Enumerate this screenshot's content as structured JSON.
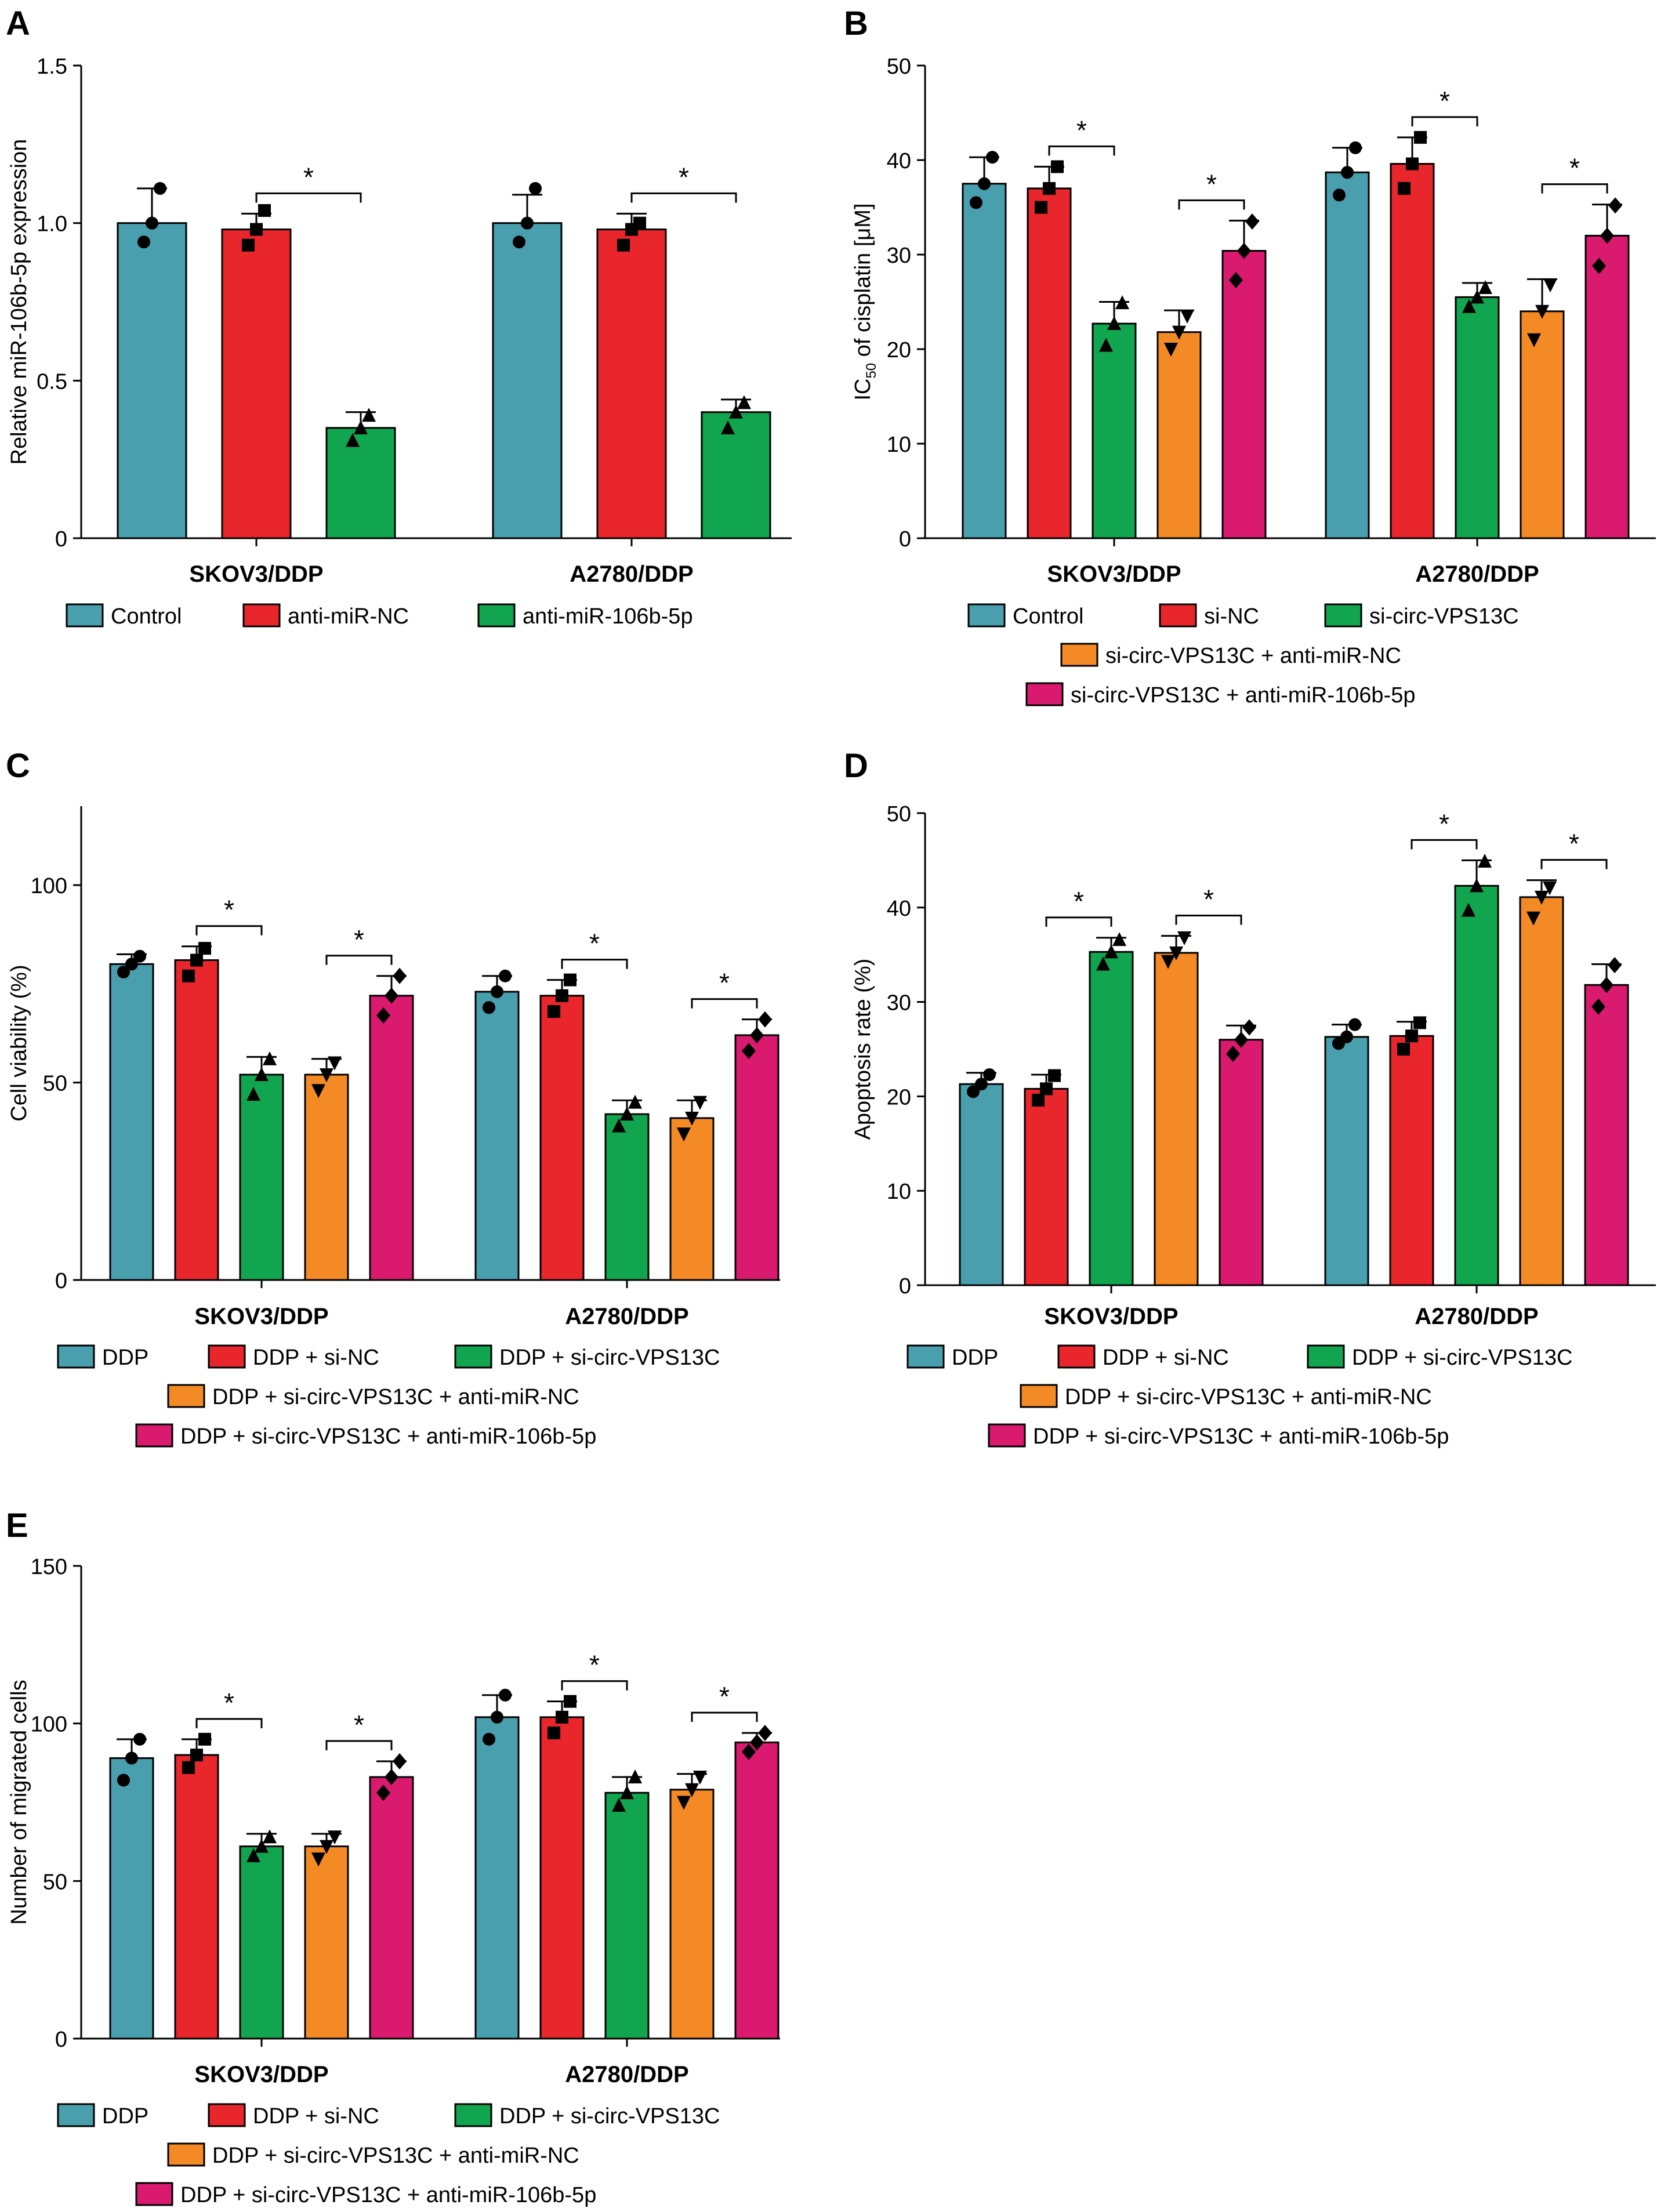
{
  "colors": {
    "teal": "#4a9fae",
    "red": "#e8262c",
    "green": "#12a54f",
    "orange": "#f48a25",
    "magenta": "#d91a6f",
    "axis": "#000000"
  },
  "chart_data": [
    {
      "type": "bar",
      "panel_label": "A",
      "ylabel": "Relative miR-106b-5p expression",
      "ylim": [
        0,
        1.5
      ],
      "yticks": [
        0,
        0.5,
        1.0,
        1.5
      ],
      "ytick_labels": [
        "0",
        "0.5",
        "1.0",
        "1.5"
      ],
      "groups": [
        "SKOV3/DDP",
        "A2780/DDP"
      ],
      "series": [
        {
          "name": "Control",
          "color": "teal",
          "marker": "circle",
          "values": [
            1.0,
            1.0
          ],
          "sd": [
            0.11,
            0.09
          ],
          "points": [
            [
              0.94,
              1.0,
              1.11
            ],
            [
              0.94,
              1.0,
              1.11
            ]
          ]
        },
        {
          "name": "anti-miR-NC",
          "color": "red",
          "marker": "square",
          "values": [
            0.98,
            0.98
          ],
          "sd": [
            0.05,
            0.05
          ],
          "points": [
            [
              0.93,
              0.98,
              1.04
            ],
            [
              0.93,
              0.98,
              1.0
            ]
          ]
        },
        {
          "name": "anti-miR-106b-5p",
          "color": "green",
          "marker": "triangle-up",
          "values": [
            0.35,
            0.4
          ],
          "sd": [
            0.05,
            0.04
          ],
          "points": [
            [
              0.31,
              0.35,
              0.39
            ],
            [
              0.35,
              0.4,
              0.43
            ]
          ]
        }
      ],
      "significance": [
        {
          "group": 0,
          "from": 1,
          "to": 2,
          "label": "*"
        },
        {
          "group": 1,
          "from": 1,
          "to": 2,
          "label": "*"
        }
      ],
      "legend_rows": [
        [
          0,
          1,
          2
        ]
      ]
    },
    {
      "type": "bar",
      "panel_label": "B",
      "ylabel_main": "IC",
      "ylabel_sub": "50",
      "ylabel_rest": " of cisplatin [μM]",
      "ylim": [
        0,
        50
      ],
      "yticks": [
        0,
        10,
        20,
        30,
        40,
        50
      ],
      "ytick_labels": [
        "0",
        "10",
        "20",
        "30",
        "40",
        "50"
      ],
      "groups": [
        "SKOV3/DDP",
        "A2780/DDP"
      ],
      "series": [
        {
          "name": "Control",
          "color": "teal",
          "marker": "circle",
          "values": [
            37.5,
            38.7
          ],
          "sd": [
            2.8,
            2.6
          ],
          "points": [
            [
              35.5,
              37.5,
              40.3
            ],
            [
              36.3,
              38.7,
              41.3
            ]
          ]
        },
        {
          "name": "si-NC",
          "color": "red",
          "marker": "square",
          "values": [
            37.0,
            39.6
          ],
          "sd": [
            2.3,
            2.8
          ],
          "points": [
            [
              35.0,
              37.0,
              39.3
            ],
            [
              37.0,
              39.6,
              42.4
            ]
          ]
        },
        {
          "name": "si-circ-VPS13C",
          "color": "green",
          "marker": "triangle-up",
          "values": [
            22.7,
            25.5
          ],
          "sd": [
            2.3,
            1.5
          ],
          "points": [
            [
              20.4,
              22.7,
              24.9
            ],
            [
              24.5,
              25.5,
              26.5
            ]
          ]
        },
        {
          "name": "si-circ-VPS13C + anti-miR-NC",
          "color": "orange",
          "marker": "triangle-down",
          "values": [
            21.8,
            24.0
          ],
          "sd": [
            2.3,
            3.4
          ],
          "points": [
            [
              20.0,
              21.8,
              23.5
            ],
            [
              21.0,
              24.0,
              26.8
            ]
          ]
        },
        {
          "name": "si-circ-VPS13C + anti-miR-106b-5p",
          "color": "magenta",
          "marker": "diamond",
          "values": [
            30.4,
            32.0
          ],
          "sd": [
            3.2,
            3.3
          ],
          "points": [
            [
              27.3,
              30.4,
              33.5
            ],
            [
              28.8,
              32.0,
              35.2
            ]
          ]
        }
      ],
      "significance": [
        {
          "group": 0,
          "from": 1,
          "to": 2,
          "label": "*"
        },
        {
          "group": 0,
          "from": 3,
          "to": 4,
          "label": "*"
        },
        {
          "group": 1,
          "from": 1,
          "to": 2,
          "label": "*"
        },
        {
          "group": 1,
          "from": 3,
          "to": 4,
          "label": "*"
        }
      ],
      "legend_rows": [
        [
          0,
          1,
          2
        ],
        [
          3
        ],
        [
          4
        ]
      ]
    },
    {
      "type": "bar",
      "panel_label": "C",
      "ylabel": "Cell viability (%)",
      "ylim": [
        0,
        120
      ],
      "yticks": [
        0,
        50,
        100
      ],
      "ytick_labels": [
        "0",
        "50",
        "100"
      ],
      "groups": [
        "SKOV3/DDP",
        "A2780/DDP"
      ],
      "series": [
        {
          "name": "DDP",
          "color": "teal",
          "marker": "circle",
          "values": [
            80,
            73
          ],
          "sd": [
            2.5,
            4
          ],
          "points": [
            [
              78,
              80,
              82
            ],
            [
              69,
              73,
              77
            ]
          ]
        },
        {
          "name": "DDP + si-NC",
          "color": "red",
          "marker": "square",
          "values": [
            81,
            72
          ],
          "sd": [
            3.5,
            4
          ],
          "points": [
            [
              77,
              81,
              84
            ],
            [
              68,
              72,
              76
            ]
          ]
        },
        {
          "name": "DDP + si-circ-VPS13C",
          "color": "green",
          "marker": "triangle-up",
          "values": [
            52,
            42
          ],
          "sd": [
            4.5,
            3.5
          ],
          "points": [
            [
              47,
              52,
              56
            ],
            [
              39,
              42,
              45
            ]
          ]
        },
        {
          "name": "DDP + si-circ-VPS13C + anti-miR-NC",
          "color": "orange",
          "marker": "triangle-down",
          "values": [
            52,
            41
          ],
          "sd": [
            4,
            4.5
          ],
          "points": [
            [
              48,
              52,
              55
            ],
            [
              37,
              41,
              45
            ]
          ]
        },
        {
          "name": "DDP + si-circ-VPS13C + anti-miR-106b-5p",
          "color": "magenta",
          "marker": "diamond",
          "values": [
            72,
            62
          ],
          "sd": [
            5,
            4
          ],
          "points": [
            [
              67,
              72,
              77
            ],
            [
              58,
              62,
              66
            ]
          ]
        }
      ],
      "significance": [
        {
          "group": 0,
          "from": 1,
          "to": 2,
          "label": "*"
        },
        {
          "group": 0,
          "from": 3,
          "to": 4,
          "label": "*"
        },
        {
          "group": 1,
          "from": 1,
          "to": 2,
          "label": "*"
        },
        {
          "group": 1,
          "from": 3,
          "to": 4,
          "label": "*"
        }
      ],
      "legend_rows": [
        [
          0,
          1,
          2
        ],
        [
          3
        ],
        [
          4
        ]
      ]
    },
    {
      "type": "bar",
      "panel_label": "D",
      "ylabel": "Apoptosis rate (%)",
      "ylim": [
        0,
        50
      ],
      "yticks": [
        0,
        10,
        20,
        30,
        40,
        50
      ],
      "ytick_labels": [
        "0",
        "10",
        "20",
        "30",
        "40",
        "50"
      ],
      "groups": [
        "SKOV3/DDP",
        "A2780/DDP"
      ],
      "series": [
        {
          "name": "DDP",
          "color": "teal",
          "marker": "circle",
          "values": [
            21.3,
            26.3
          ],
          "sd": [
            1.2,
            1.3
          ],
          "points": [
            [
              20.5,
              21.3,
              22.3
            ],
            [
              25.6,
              26.3,
              27.6
            ]
          ]
        },
        {
          "name": "DDP + si-NC",
          "color": "red",
          "marker": "square",
          "values": [
            20.8,
            26.4
          ],
          "sd": [
            1.5,
            1.5
          ],
          "points": [
            [
              19.6,
              20.8,
              22.2
            ],
            [
              25.0,
              26.4,
              27.8
            ]
          ]
        },
        {
          "name": "DDP + si-circ-VPS13C",
          "color": "green",
          "marker": "triangle-up",
          "values": [
            35.3,
            42.3
          ],
          "sd": [
            1.5,
            2.7
          ],
          "points": [
            [
              34.0,
              35.3,
              36.6
            ],
            [
              39.7,
              42.3,
              44.9
            ]
          ]
        },
        {
          "name": "DDP + si-circ-VPS13C + anti-miR-NC",
          "color": "orange",
          "marker": "triangle-down",
          "values": [
            35.2,
            41.1
          ],
          "sd": [
            1.8,
            1.8
          ],
          "points": [
            [
              34.3,
              35.2,
              36.8
            ],
            [
              38.9,
              41.1,
              42.1
            ]
          ]
        },
        {
          "name": "DDP + si-circ-VPS13C + anti-miR-106b-5p",
          "color": "magenta",
          "marker": "diamond",
          "values": [
            26.0,
            31.8
          ],
          "sd": [
            1.5,
            2.2
          ],
          "points": [
            [
              24.5,
              26.0,
              27.3
            ],
            [
              29.5,
              31.8,
              33.9
            ]
          ]
        }
      ],
      "significance": [
        {
          "group": 0,
          "from": 1,
          "to": 2,
          "label": "*"
        },
        {
          "group": 0,
          "from": 3,
          "to": 4,
          "label": "*"
        },
        {
          "group": 1,
          "from": 1,
          "to": 2,
          "label": "*"
        },
        {
          "group": 1,
          "from": 3,
          "to": 4,
          "label": "*"
        }
      ],
      "legend_rows": [
        [
          0,
          1,
          2
        ],
        [
          3
        ],
        [
          4
        ]
      ]
    },
    {
      "type": "bar",
      "panel_label": "E",
      "ylabel": "Number of migrated cells",
      "ylim": [
        0,
        150
      ],
      "yticks": [
        0,
        50,
        100,
        150
      ],
      "ytick_labels": [
        "0",
        "50",
        "100",
        "150"
      ],
      "groups": [
        "SKOV3/DDP",
        "A2780/DDP"
      ],
      "series": [
        {
          "name": "DDP",
          "color": "teal",
          "marker": "circle",
          "values": [
            89,
            102
          ],
          "sd": [
            6,
            7
          ],
          "points": [
            [
              82,
              89,
              95
            ],
            [
              95,
              102,
              109
            ]
          ]
        },
        {
          "name": "DDP + si-NC",
          "color": "red",
          "marker": "square",
          "values": [
            90,
            102
          ],
          "sd": [
            5,
            5
          ],
          "points": [
            [
              86,
              90,
              95
            ],
            [
              97,
              102,
              107
            ]
          ]
        },
        {
          "name": "DDP + si-circ-VPS13C",
          "color": "green",
          "marker": "triangle-up",
          "values": [
            61,
            78
          ],
          "sd": [
            4,
            5
          ],
          "points": [
            [
              58,
              61,
              64
            ],
            [
              74,
              78,
              83
            ]
          ]
        },
        {
          "name": "DDP + si-circ-VPS13C + anti-miR-NC",
          "color": "orange",
          "marker": "triangle-down",
          "values": [
            61,
            79
          ],
          "sd": [
            4,
            5
          ],
          "points": [
            [
              57,
              61,
              64
            ],
            [
              75,
              79,
              83
            ]
          ]
        },
        {
          "name": "DDP + si-circ-VPS13C + anti-miR-106b-5p",
          "color": "magenta",
          "marker": "diamond",
          "values": [
            83,
            94
          ],
          "sd": [
            5,
            3
          ],
          "points": [
            [
              78,
              83,
              88
            ],
            [
              91,
              94,
              97
            ]
          ]
        }
      ],
      "significance": [
        {
          "group": 0,
          "from": 1,
          "to": 2,
          "label": "*"
        },
        {
          "group": 0,
          "from": 3,
          "to": 4,
          "label": "*"
        },
        {
          "group": 1,
          "from": 1,
          "to": 2,
          "label": "*"
        },
        {
          "group": 1,
          "from": 3,
          "to": 4,
          "label": "*"
        }
      ],
      "legend_rows": [
        [
          0,
          1,
          2
        ],
        [
          3
        ],
        [
          4
        ]
      ]
    }
  ]
}
